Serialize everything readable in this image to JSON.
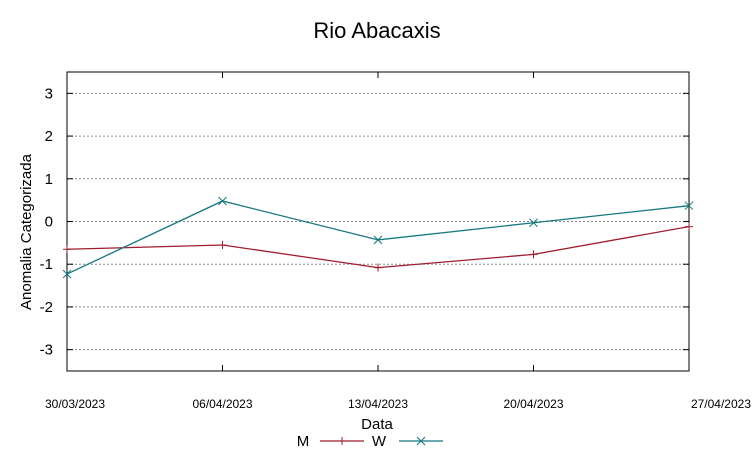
{
  "chart_data": {
    "type": "line",
    "title": "Rio Abacaxis",
    "xlabel": "Data",
    "ylabel": "Anomalia Categorizada",
    "ylim": [
      -3.5,
      3.5
    ],
    "yticks": [
      3,
      2,
      1,
      0,
      -1,
      -2,
      -3
    ],
    "ytick_labels": [
      "3",
      "2",
      "1",
      "0",
      "-1",
      "-2",
      "-3"
    ],
    "categories": [
      "30/03/2023",
      "06/04/2023",
      "13/04/2023",
      "20/04/2023",
      "27/04/2023"
    ],
    "grid": true,
    "legend_position": "bottom-center",
    "series": [
      {
        "name": "M",
        "color": "#a01c2c",
        "marker": "plus",
        "values": [
          -0.65,
          -0.55,
          -1.08,
          -0.77,
          -0.12
        ]
      },
      {
        "name": "W",
        "color": "#137880",
        "marker": "x",
        "values": [
          -1.23,
          0.48,
          -0.43,
          -0.03,
          0.37
        ]
      }
    ]
  }
}
